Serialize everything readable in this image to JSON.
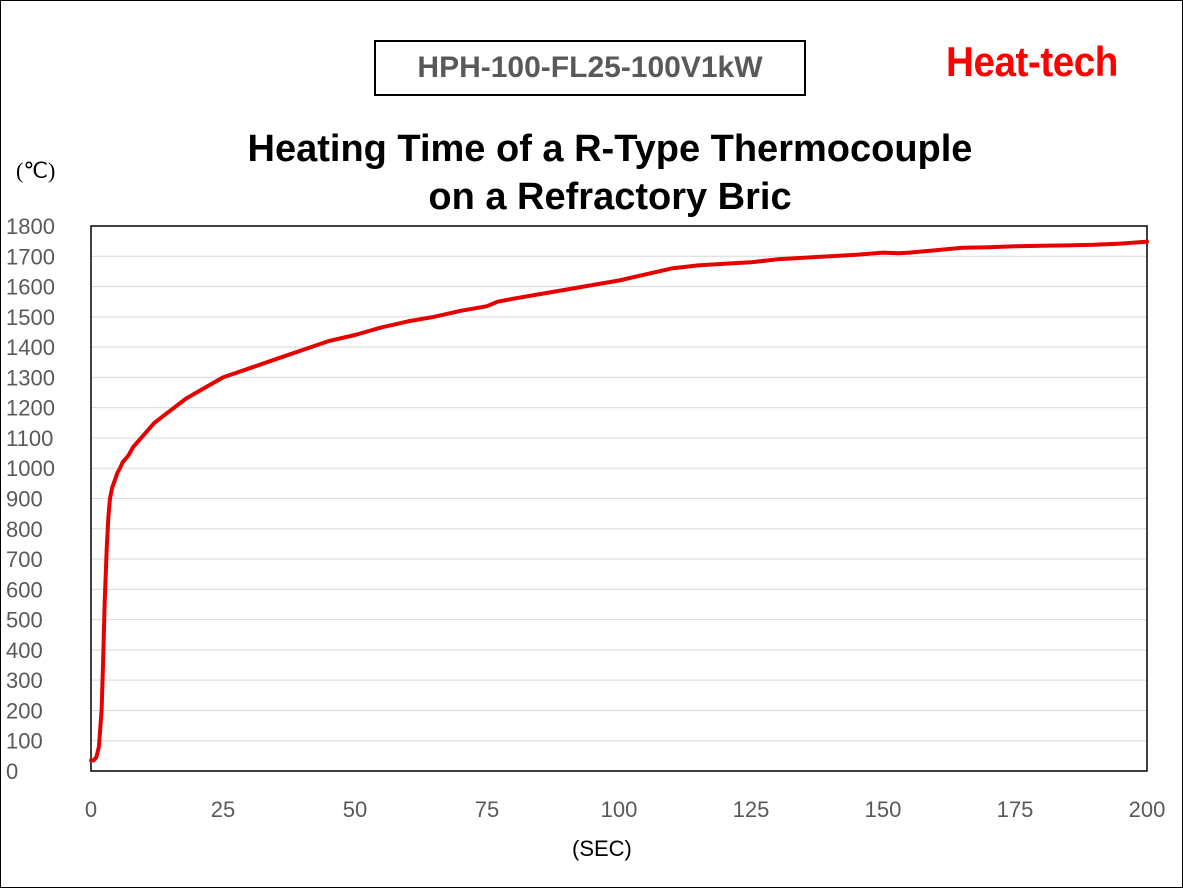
{
  "header": {
    "model_label": "HPH-100-FL25-100V1kW",
    "brand": "Heat-tech"
  },
  "chart_data": {
    "type": "line",
    "title_line1": "Heating Time of a R-Type Thermocouple",
    "title_line2": "on a Refractory Bric",
    "xlabel": "(SEC)",
    "ylabel": "(℃)",
    "xlim": [
      0,
      200
    ],
    "ylim": [
      0,
      1800
    ],
    "xticks": [
      0,
      25,
      50,
      75,
      100,
      125,
      150,
      175,
      200
    ],
    "yticks": [
      0,
      100,
      200,
      300,
      400,
      500,
      600,
      700,
      800,
      900,
      1000,
      1100,
      1200,
      1300,
      1400,
      1500,
      1600,
      1700,
      1800
    ],
    "grid": "horizontal",
    "legend": "none",
    "line_color": "#e60000",
    "grid_color": "#d9d9d9",
    "series": [
      {
        "x": [
          0,
          0.5,
          1,
          1.5,
          2,
          2.3,
          2.6,
          3,
          3.3,
          3.6,
          4,
          4.5,
          5,
          5.5,
          6,
          7,
          8,
          10,
          12,
          15,
          18,
          20,
          25,
          30,
          35,
          40,
          45,
          50,
          55,
          60,
          65,
          70,
          75,
          77,
          80,
          85,
          90,
          95,
          100,
          105,
          110,
          115,
          120,
          125,
          130,
          135,
          140,
          145,
          150,
          153,
          155,
          160,
          165,
          170,
          175,
          180,
          185,
          190,
          195,
          200
        ],
        "y": [
          35,
          35,
          45,
          80,
          200,
          360,
          560,
          740,
          840,
          900,
          935,
          960,
          985,
          1000,
          1020,
          1040,
          1070,
          1110,
          1150,
          1190,
          1230,
          1250,
          1300,
          1330,
          1360,
          1390,
          1420,
          1440,
          1465,
          1485,
          1500,
          1520,
          1535,
          1550,
          1560,
          1575,
          1590,
          1605,
          1620,
          1640,
          1660,
          1670,
          1675,
          1680,
          1690,
          1695,
          1700,
          1705,
          1712,
          1710,
          1712,
          1720,
          1728,
          1730,
          1733,
          1735,
          1736,
          1738,
          1742,
          1748
        ]
      }
    ]
  }
}
